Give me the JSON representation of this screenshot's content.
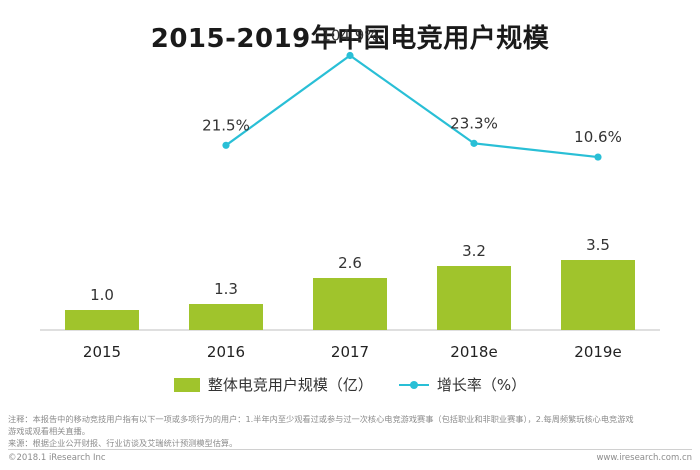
{
  "title": "2015-2019年中国电竞用户规模",
  "chart_data": {
    "type": "bar",
    "categories": [
      "2015",
      "2016",
      "2017",
      "2018e",
      "2019e"
    ],
    "series": [
      {
        "name": "整体电竞用户规模（亿）",
        "type": "bar",
        "values": [
          1.0,
          1.3,
          2.6,
          3.2,
          3.5
        ],
        "labels": [
          "1.0",
          "1.3",
          "2.6",
          "3.2",
          "3.5"
        ],
        "color": "#a0c42c"
      },
      {
        "name": "增长率（%）",
        "type": "line",
        "values": [
          null,
          21.5,
          104.9,
          23.3,
          10.6
        ],
        "labels": [
          "",
          "21.5%",
          "104.9%",
          "23.3%",
          "10.6%"
        ],
        "color": "#29bfd6"
      }
    ],
    "bar_ylim": [
      0,
      4
    ],
    "line_ylim": [
      -150,
      110
    ],
    "grid": false,
    "legend_position": "bottom"
  },
  "notes": {
    "line1": "注释：本报告中的移动竞技用户指有以下一项或多项行为的用户：1.半年内至少观看过或参与过一次核心电竞游戏赛事（包括职业和非职业赛事），2.每周频繁玩核心电竞游戏",
    "line2": "游戏或观看相关直播。",
    "line3": "来源：根据企业公开财报、行业访谈及艾瑞统计预测模型估算。"
  },
  "footer": {
    "copyright": "©2018.1 iResearch Inc",
    "website": "www.iresearch.com.cn"
  }
}
